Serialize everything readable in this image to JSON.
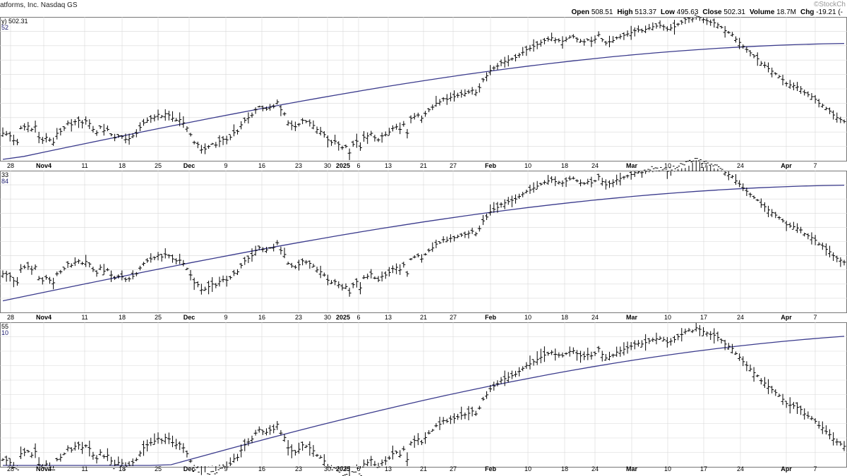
{
  "header": {
    "title": "atforms, Inc. Nasdaq GS",
    "logo": "©StockCh",
    "ohlc": [
      {
        "label": "Open",
        "value": "508.51"
      },
      {
        "label": "High",
        "value": "513.37"
      },
      {
        "label": "Low",
        "value": "495.63"
      },
      {
        "label": "Close",
        "value": "502.31"
      },
      {
        "label": "Volume",
        "value": "18.7M"
      },
      {
        "label": "Chg",
        "value": "-19.21 (-"
      }
    ]
  },
  "colors": {
    "bars": "#000000",
    "moving_average": "#3a3a8c",
    "grid": "#d8d8d8",
    "panel_border": "#777777",
    "corner_text": "#1a1a6e"
  },
  "chart_data": [
    {
      "type": "ohlc",
      "panel": "top",
      "corner_labels": [
        "y) 502.31",
        "52"
      ],
      "x_ticks": [
        "28",
        "Nov4",
        "11",
        "18",
        "25",
        "Dec",
        "9",
        "16",
        "23",
        "30",
        "2025",
        "6",
        "13",
        "21",
        "27",
        "Feb",
        "10",
        "18",
        "24",
        "Mar",
        "10",
        "17",
        "24",
        "Apr",
        "7"
      ],
      "bold_ticks": [
        "Nov4",
        "Dec",
        "2025",
        "Feb",
        "Mar",
        "Apr"
      ],
      "series": [
        {
          "name": "price",
          "values": [
            142,
            141,
            138,
            131,
            128,
            150,
            152,
            153,
            148,
            153,
            135,
            131,
            136,
            132,
            128,
            142,
            145,
            150,
            158,
            155,
            160,
            162,
            158,
            161,
            157,
            148,
            143,
            152,
            146,
            148,
            140,
            135,
            138,
            137,
            133,
            134,
            138,
            142,
            151,
            158,
            162,
            165,
            167,
            171,
            168,
            172,
            170,
            165,
            162,
            163,
            158,
            150,
            140,
            128,
            125,
            117,
            118,
            122,
            126,
            124,
            130,
            133,
            132,
            136,
            143,
            145,
            155,
            162,
            166,
            170,
            178,
            183,
            180,
            179,
            182,
            183,
            190,
            178,
            172,
            158,
            154,
            152,
            156,
            162,
            160,
            158,
            154,
            148,
            145,
            140,
            132,
            128,
            130,
            125,
            120,
            122,
            112,
            125,
            130,
            120,
            136,
            138,
            142,
            135,
            132,
            138,
            140,
            144,
            150,
            152,
            148,
            156,
            142,
            165,
            168,
            170,
            165,
            172,
            178,
            182,
            188,
            190,
            195,
            194,
            197,
            198,
            200,
            202,
            203,
            205,
            208,
            204,
            212,
            224,
            230,
            238,
            242,
            245,
            250,
            252,
            254,
            256,
            258,
            262,
            266,
            270,
            272,
            275,
            278,
            281,
            284,
            286,
            288,
            285,
            284,
            283,
            286,
            289,
            290,
            286,
            283,
            282,
            285,
            283,
            286,
            293,
            285,
            280,
            282,
            284,
            288,
            290,
            292,
            294,
            296,
            299,
            300,
            299,
            301,
            303,
            305,
            306,
            307,
            305,
            301,
            303,
            305,
            309,
            312,
            316,
            318,
            317,
            321,
            319,
            316,
            314,
            312,
            311,
            308,
            304,
            299,
            296,
            293,
            286,
            281,
            275,
            270,
            265,
            260,
            256,
            249,
            246,
            241,
            237,
            233,
            229,
            224,
            218,
            216,
            215,
            213,
            210,
            204,
            201,
            198,
            194,
            188,
            185,
            180,
            176,
            170,
            166,
            163,
            160
          ]
        }
      ],
      "ma_start": 100,
      "ma_end": 300
    }
  ]
}
